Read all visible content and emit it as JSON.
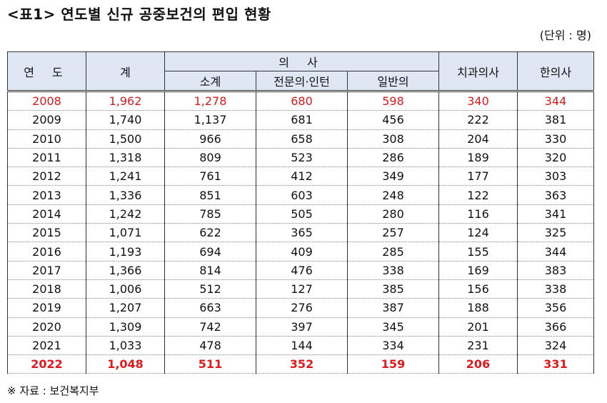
{
  "title": "<표1> 연도별 신규 공중보건의 편입 현황",
  "unit": "(단위 : 명)",
  "headers": {
    "year": "연 도",
    "total": "계",
    "doctor": "의 사",
    "subtotal": "소계",
    "specialist": "전문의·인턴",
    "general": "일반의",
    "dentist": "치과의사",
    "oriental": "한의사"
  },
  "rows": [
    [
      "2008",
      "1,962",
      "1,278",
      "680",
      "598",
      "340",
      "344"
    ],
    [
      "2009",
      "1,740",
      "1,137",
      "681",
      "456",
      "222",
      "381"
    ],
    [
      "2010",
      "1,500",
      "966",
      "658",
      "308",
      "204",
      "330"
    ],
    [
      "2011",
      "1,318",
      "809",
      "523",
      "286",
      "189",
      "320"
    ],
    [
      "2012",
      "1,241",
      "761",
      "412",
      "349",
      "177",
      "303"
    ],
    [
      "2013",
      "1,336",
      "851",
      "603",
      "248",
      "122",
      "363"
    ],
    [
      "2014",
      "1,242",
      "785",
      "505",
      "280",
      "116",
      "341"
    ],
    [
      "2015",
      "1,071",
      "622",
      "365",
      "257",
      "124",
      "325"
    ],
    [
      "2016",
      "1,193",
      "694",
      "409",
      "285",
      "155",
      "344"
    ],
    [
      "2017",
      "1,366",
      "814",
      "476",
      "338",
      "169",
      "383"
    ],
    [
      "2018",
      "1,006",
      "512",
      "127",
      "385",
      "156",
      "338"
    ],
    [
      "2019",
      "1,207",
      "663",
      "276",
      "387",
      "188",
      "356"
    ],
    [
      "2020",
      "1,309",
      "742",
      "397",
      "345",
      "201",
      "366"
    ],
    [
      "2021",
      "1,033",
      "478",
      "144",
      "334",
      "231",
      "324"
    ],
    [
      "2022",
      "1,048",
      "511",
      "352",
      "159",
      "206",
      "331"
    ]
  ],
  "source": "※ 자료 : 보건복지부",
  "colors": {
    "highlight": "#e0191c",
    "header_bg": "#dfe6f4"
  }
}
